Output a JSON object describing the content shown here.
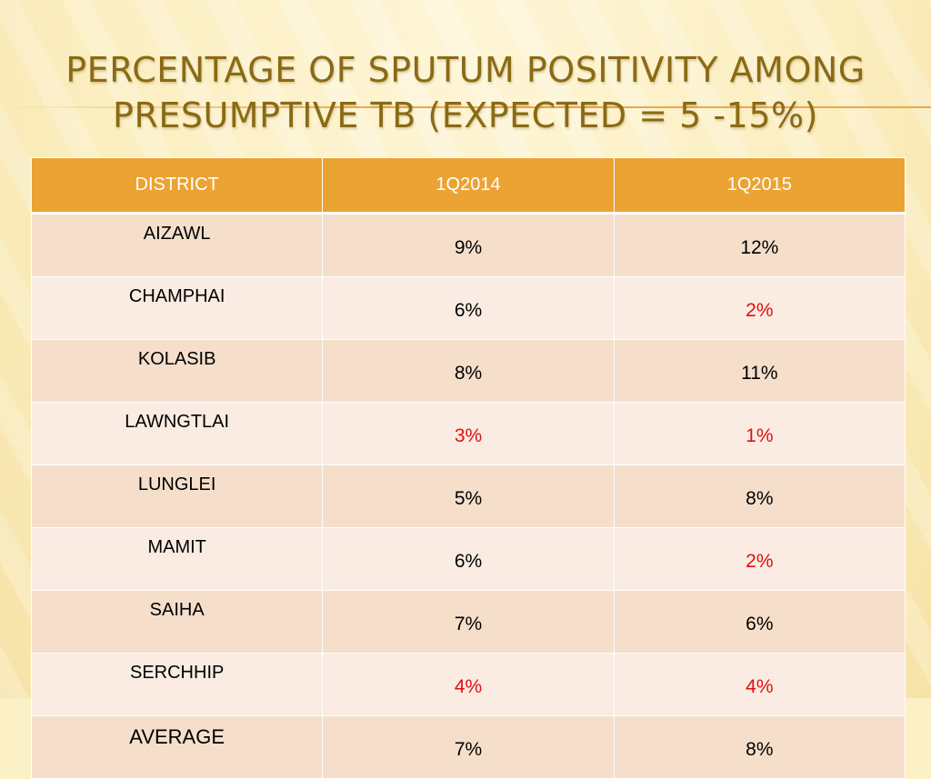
{
  "title": {
    "line1": "PERCENTAGE OF SPUTUM POSITIVITY AMONG",
    "line2": "PRESUMPTIVE TB (EXPECTED = 5 -15%)"
  },
  "colors": {
    "header_bg": "#eba333",
    "title": "#8a6a14",
    "below_expected": "#e01010",
    "row_odd": "#f5dfcb",
    "row_even": "#faece3"
  },
  "chart_data": {
    "type": "table",
    "columns": [
      "DISTRICT",
      "1Q2014",
      "1Q2015"
    ],
    "rows": [
      {
        "district": "AIZAWL",
        "q2014": "9%",
        "q2015": "12%",
        "q2014_red": false,
        "q2015_red": false
      },
      {
        "district": "CHAMPHAI",
        "q2014": "6%",
        "q2015": "2%",
        "q2014_red": false,
        "q2015_red": true
      },
      {
        "district": "KOLASIB",
        "q2014": "8%",
        "q2015": "11%",
        "q2014_red": false,
        "q2015_red": false
      },
      {
        "district": "LAWNGTLAI",
        "q2014": "3%",
        "q2015": "1%",
        "q2014_red": true,
        "q2015_red": true
      },
      {
        "district": "LUNGLEI",
        "q2014": "5%",
        "q2015": "8%",
        "q2014_red": false,
        "q2015_red": false
      },
      {
        "district": "MAMIT",
        "q2014": "6%",
        "q2015": "2%",
        "q2014_red": false,
        "q2015_red": true
      },
      {
        "district": "SAIHA",
        "q2014": "7%",
        "q2015": "6%",
        "q2014_red": false,
        "q2015_red": false
      },
      {
        "district": "SERCHHIP",
        "q2014": "4%",
        "q2015": "4%",
        "q2014_red": true,
        "q2015_red": true
      },
      {
        "district": "AVERAGE",
        "q2014": "7%",
        "q2015": "8%",
        "q2014_red": false,
        "q2015_red": false
      }
    ]
  }
}
